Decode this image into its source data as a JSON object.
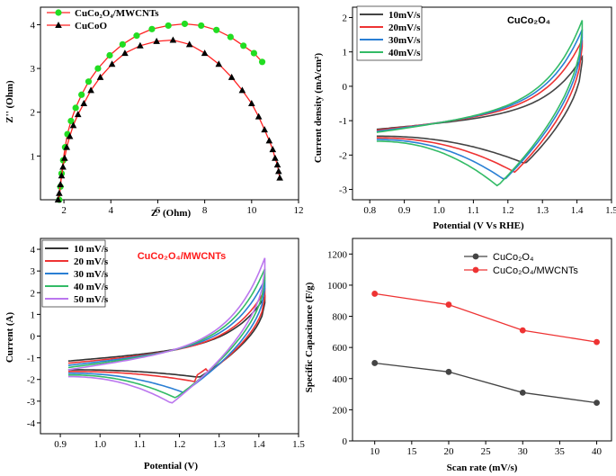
{
  "chart_data": [
    {
      "type": "scatter",
      "title": "",
      "xlabel": "Z' (Ohm)",
      "ylabel": "Z'' (Ohm)",
      "xlim": [
        1,
        12
      ],
      "ylim": [
        0,
        4.4
      ],
      "xticks": [
        "2",
        "4",
        "6",
        "8",
        "10",
        "12"
      ],
      "yticks": [
        "1",
        "2",
        "3",
        "4"
      ],
      "legend_position": "top-left",
      "series": [
        {
          "name": "CuCo2O4/MWCNTs",
          "legend_label": "CuCo₂O₄/MWCNTs",
          "color": "#22dd22",
          "marker": "circle",
          "x": [
            1.8,
            1.85,
            1.9,
            1.97,
            2.05,
            2.15,
            2.3,
            2.5,
            2.75,
            3.05,
            3.45,
            3.95,
            4.5,
            5.1,
            5.75,
            6.45,
            7.15,
            7.85,
            8.5,
            9.1,
            9.65,
            10.1,
            10.45
          ],
          "y": [
            0.0,
            0.3,
            0.6,
            0.9,
            1.2,
            1.5,
            1.8,
            2.1,
            2.4,
            2.7,
            3.0,
            3.3,
            3.55,
            3.75,
            3.9,
            3.98,
            4.02,
            3.98,
            3.88,
            3.72,
            3.52,
            3.35,
            3.15
          ]
        },
        {
          "name": "CuCoO",
          "legend_label": "CuCoO",
          "color": "#cc0000",
          "marker": "triangle",
          "x": [
            1.75,
            1.8,
            1.85,
            1.9,
            1.96,
            2.03,
            2.12,
            2.25,
            2.4,
            2.6,
            2.85,
            3.15,
            3.55,
            4.05,
            4.6,
            5.25,
            5.95,
            6.65,
            7.35,
            8.0,
            8.6,
            9.15,
            9.6,
            10.0,
            10.3,
            10.55,
            10.75,
            10.9,
            11.0,
            11.1,
            11.15,
            11.2
          ],
          "y": [
            0.0,
            0.15,
            0.35,
            0.55,
            0.75,
            0.95,
            1.2,
            1.45,
            1.7,
            1.95,
            2.2,
            2.5,
            2.8,
            3.1,
            3.35,
            3.52,
            3.62,
            3.65,
            3.55,
            3.35,
            3.1,
            2.8,
            2.5,
            2.2,
            1.9,
            1.6,
            1.35,
            1.15,
            0.95,
            0.8,
            0.65,
            0.5
          ]
        }
      ]
    },
    {
      "type": "line",
      "title": "CuCo₂O₄",
      "xlabel": "Potential (V Vs RHE)",
      "ylabel": "Current density (mA/cm²)",
      "xlim": [
        0.75,
        1.5
      ],
      "ylim": [
        -3.3,
        2.3
      ],
      "xticks": [
        "0.8",
        "0.9",
        "1.0",
        "1.1",
        "1.2",
        "1.3",
        "1.4",
        "1.5"
      ],
      "yticks": [
        "-3",
        "-2",
        "-1",
        "0",
        "1",
        "2"
      ],
      "legend_position": "top-left",
      "series": [
        {
          "name": "10mV/s",
          "color": "#444444",
          "oxidation_peak": 0.85,
          "reduction_peak": -2.25,
          "reduction_peak_potential": 1.25,
          "lower_start": -1.45
        },
        {
          "name": "20mV/s",
          "color": "#ee3333",
          "oxidation_peak": 1.35,
          "reduction_peak": -2.5,
          "reduction_peak_potential": 1.22,
          "lower_start": -1.5
        },
        {
          "name": "30mV/s",
          "color": "#2a7fd4",
          "oxidation_peak": 1.65,
          "reduction_peak": -2.72,
          "reduction_peak_potential": 1.19,
          "lower_start": -1.55
        },
        {
          "name": "40mV/s",
          "color": "#33bb66",
          "oxidation_peak": 1.92,
          "reduction_peak": -2.9,
          "reduction_peak_potential": 1.17,
          "lower_start": -1.6
        }
      ]
    },
    {
      "type": "line",
      "title": "CuCo₂O₄/MWCNTs",
      "xlabel": "Potential (V)",
      "ylabel": "Current (A)",
      "xlim": [
        0.85,
        1.5
      ],
      "ylim": [
        -4.5,
        4.5
      ],
      "xticks": [
        "0.9",
        "1.0",
        "1.1",
        "1.2",
        "1.3",
        "1.4",
        "1.5"
      ],
      "yticks": [
        "-4",
        "-3",
        "-2",
        "-1",
        "0",
        "1",
        "2",
        "3",
        "4"
      ],
      "legend_position": "top-left",
      "series": [
        {
          "name": "10 mV/s",
          "color": "#333333",
          "oxidation_peak": 1.8,
          "reduction_peak": -1.9,
          "reduction_peak_potential": 1.25
        },
        {
          "name": "20 mV/s",
          "color": "#ee3333",
          "oxidation_peak": 2.1,
          "reduction_peak": -2.1,
          "reduction_peak_potential": 1.24
        },
        {
          "name": "30 mV/s",
          "color": "#2a7fd4",
          "oxidation_peak": 2.6,
          "reduction_peak": -2.6,
          "reduction_peak_potential": 1.21
        },
        {
          "name": "40 mV/s",
          "color": "#33bb66",
          "oxidation_peak": 3.1,
          "reduction_peak": -2.85,
          "reduction_peak_potential": 1.19
        },
        {
          "name": "50 mV/s",
          "color": "#bb77ee",
          "oxidation_peak": 3.6,
          "reduction_peak": -3.1,
          "reduction_peak_potential": 1.18
        }
      ]
    },
    {
      "type": "line",
      "title": "",
      "xlabel": "Scan rate (mV/s)",
      "ylabel": "Specific Capacitance (F/g)",
      "xlim": [
        7,
        42
      ],
      "ylim": [
        0,
        1300
      ],
      "xticks": [
        "10",
        "15",
        "20",
        "25",
        "30",
        "35",
        "40"
      ],
      "yticks": [
        "0",
        "200",
        "400",
        "600",
        "800",
        "1000",
        "1200"
      ],
      "legend_position": "top-right",
      "x": [
        10,
        20,
        30,
        40
      ],
      "series": [
        {
          "name": "CuCo2O4",
          "legend_label": "CuCo₂O₄",
          "color": "#444444",
          "values": [
            500,
            443,
            310,
            245
          ]
        },
        {
          "name": "CuCo2O4/MWCNTs",
          "legend_label": "CuCo₂O₄/MWCNTs",
          "color": "#ee3333",
          "values": [
            945,
            875,
            710,
            635
          ]
        }
      ]
    }
  ]
}
